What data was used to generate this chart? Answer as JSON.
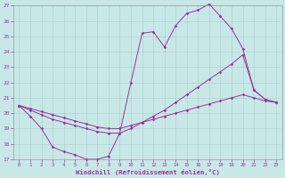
{
  "xlabel": "Windchill (Refroidissement éolien,°C)",
  "xlim": [
    -0.5,
    23.5
  ],
  "ylim": [
    17,
    27
  ],
  "yticks": [
    17,
    18,
    19,
    20,
    21,
    22,
    23,
    24,
    25,
    26,
    27
  ],
  "xticks": [
    0,
    1,
    2,
    3,
    4,
    5,
    6,
    7,
    8,
    9,
    10,
    11,
    12,
    13,
    14,
    15,
    16,
    17,
    18,
    19,
    20,
    21,
    22,
    23
  ],
  "bg_color": "#c8e8e8",
  "grid_color": "#aacccc",
  "line_color": "#993399",
  "line1_x": [
    0,
    1,
    2,
    3,
    4,
    5,
    6,
    7,
    8,
    9,
    10,
    11,
    12,
    13,
    14,
    15,
    16,
    17,
    18,
    19,
    20,
    21,
    22,
    23
  ],
  "line1_y": [
    20.5,
    19.8,
    19.0,
    17.8,
    17.5,
    17.3,
    17.0,
    17.0,
    17.2,
    18.7,
    22.0,
    25.2,
    25.3,
    24.3,
    25.7,
    26.5,
    26.7,
    27.1,
    26.3,
    25.5,
    24.2,
    21.5,
    20.9,
    20.7
  ],
  "line2_x": [
    0,
    1,
    2,
    3,
    4,
    5,
    6,
    7,
    8,
    9,
    10,
    11,
    12,
    13,
    14,
    15,
    16,
    17,
    18,
    19,
    20,
    21,
    22,
    23
  ],
  "line2_y": [
    20.5,
    20.3,
    20.1,
    19.9,
    19.7,
    19.5,
    19.3,
    19.1,
    19.0,
    19.0,
    19.2,
    19.4,
    19.6,
    19.8,
    20.0,
    20.2,
    20.4,
    20.6,
    20.8,
    21.0,
    21.2,
    21.0,
    20.8,
    20.7
  ],
  "line3_x": [
    0,
    1,
    2,
    3,
    4,
    5,
    6,
    7,
    8,
    9,
    10,
    11,
    12,
    13,
    14,
    15,
    16,
    17,
    18,
    19,
    20,
    21,
    22,
    23
  ],
  "line3_y": [
    20.5,
    20.2,
    19.9,
    19.6,
    19.4,
    19.2,
    19.0,
    18.8,
    18.7,
    18.7,
    19.0,
    19.4,
    19.8,
    20.2,
    20.7,
    21.2,
    21.7,
    22.2,
    22.7,
    23.2,
    23.8,
    21.5,
    20.9,
    20.7
  ]
}
